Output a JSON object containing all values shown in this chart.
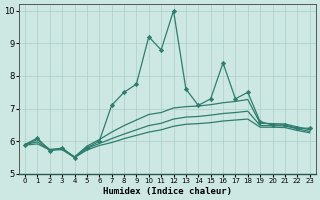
{
  "xlabel": "Humidex (Indice chaleur)",
  "xlim": [
    -0.5,
    23.5
  ],
  "ylim": [
    5,
    10.2
  ],
  "yticks": [
    5,
    6,
    7,
    8,
    9,
    10
  ],
  "xticks": [
    0,
    1,
    2,
    3,
    4,
    5,
    6,
    7,
    8,
    9,
    10,
    11,
    12,
    13,
    14,
    15,
    16,
    17,
    18,
    19,
    20,
    21,
    22,
    23
  ],
  "bg_color": "#cde8e2",
  "line_color": "#2e7d6e",
  "grid_color": "#aacfc8",
  "lines": [
    {
      "x": [
        0,
        1,
        2,
        3,
        4,
        5,
        6,
        7,
        8,
        9,
        10,
        11,
        12,
        13,
        14,
        15,
        16,
        17,
        18,
        19,
        20,
        21,
        22,
        23
      ],
      "y": [
        5.9,
        6.1,
        5.7,
        5.8,
        5.5,
        5.8,
        6.0,
        7.1,
        7.5,
        7.75,
        9.2,
        8.8,
        10.0,
        7.6,
        7.1,
        7.3,
        8.4,
        7.3,
        7.5,
        6.6,
        6.5,
        6.5,
        6.4,
        6.4
      ],
      "marker": "D",
      "markersize": 2.2,
      "linewidth": 0.9,
      "linestyle": "-"
    },
    {
      "x": [
        0,
        1,
        2,
        3,
        4,
        5,
        6,
        7,
        8,
        9,
        10,
        11,
        12,
        13,
        14,
        15,
        16,
        17,
        18,
        19,
        20,
        21,
        22,
        23
      ],
      "y": [
        5.9,
        6.05,
        5.75,
        5.78,
        5.52,
        5.85,
        6.05,
        6.28,
        6.48,
        6.65,
        6.82,
        6.88,
        7.02,
        7.06,
        7.08,
        7.12,
        7.18,
        7.22,
        7.28,
        6.55,
        6.54,
        6.53,
        6.44,
        6.35
      ],
      "marker": null,
      "markersize": 0,
      "linewidth": 0.9,
      "linestyle": "-"
    },
    {
      "x": [
        0,
        1,
        2,
        3,
        4,
        5,
        6,
        7,
        8,
        9,
        10,
        11,
        12,
        13,
        14,
        15,
        16,
        17,
        18,
        19,
        20,
        21,
        22,
        23
      ],
      "y": [
        5.9,
        5.98,
        5.74,
        5.76,
        5.52,
        5.78,
        5.93,
        6.08,
        6.22,
        6.35,
        6.48,
        6.55,
        6.68,
        6.74,
        6.76,
        6.8,
        6.85,
        6.88,
        6.92,
        6.48,
        6.48,
        6.47,
        6.38,
        6.3
      ],
      "marker": null,
      "markersize": 0,
      "linewidth": 0.9,
      "linestyle": "-"
    },
    {
      "x": [
        0,
        1,
        2,
        3,
        4,
        5,
        6,
        7,
        8,
        9,
        10,
        11,
        12,
        13,
        14,
        15,
        16,
        17,
        18,
        19,
        20,
        21,
        22,
        23
      ],
      "y": [
        5.88,
        5.92,
        5.73,
        5.74,
        5.5,
        5.73,
        5.87,
        5.96,
        6.08,
        6.18,
        6.28,
        6.35,
        6.46,
        6.52,
        6.54,
        6.57,
        6.62,
        6.65,
        6.68,
        6.43,
        6.43,
        6.42,
        6.33,
        6.26
      ],
      "marker": null,
      "markersize": 0,
      "linewidth": 0.9,
      "linestyle": "-"
    }
  ]
}
